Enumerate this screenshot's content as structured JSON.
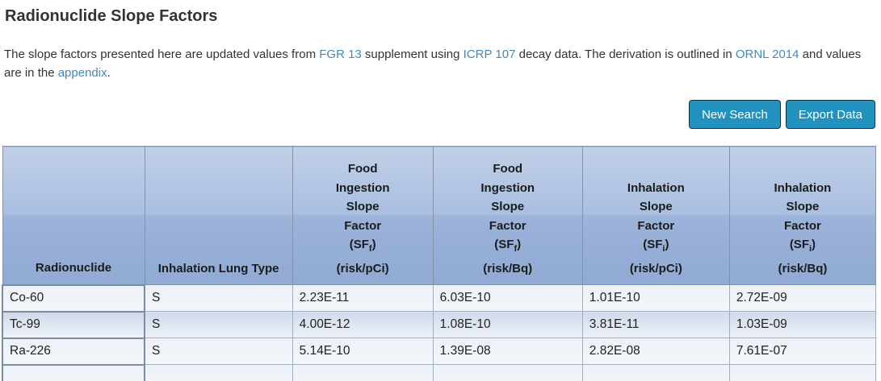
{
  "page": {
    "title": "Radionuclide Slope Factors"
  },
  "intro": {
    "part1": "The slope factors presented here are updated values from ",
    "link_fgr": "FGR 13",
    "part2": " supplement using ",
    "link_icrp": "ICRP 107",
    "part3": " decay data. The derivation is outlined in ",
    "link_ornl": "ORNL 2014",
    "part4": " and values are in the ",
    "link_appendix": "appendix",
    "part5": "."
  },
  "toolbar": {
    "new_search_label": "New Search",
    "export_data_label": "Export Data"
  },
  "table": {
    "columns": [
      {
        "id": "radionuclide",
        "type": "simple",
        "label": "Radionuclide"
      },
      {
        "id": "inhalation-lung-type",
        "type": "simple",
        "label": "Inhalation Lung Type"
      },
      {
        "id": "food-ingestion-risk-pci",
        "type": "factor",
        "lines": [
          "Food",
          "Ingestion",
          "Slope",
          "Factor"
        ],
        "symbol": "SF",
        "subscript": "f",
        "unit": "(risk/pCi)"
      },
      {
        "id": "food-ingestion-risk-bq",
        "type": "factor",
        "lines": [
          "Food",
          "Ingestion",
          "Slope",
          "Factor"
        ],
        "symbol": "SF",
        "subscript": "f",
        "unit": "(risk/Bq)"
      },
      {
        "id": "inhalation-risk-pci",
        "type": "factor",
        "lines": [
          "Inhalation",
          "Slope",
          "Factor"
        ],
        "symbol": "SF",
        "subscript": "i",
        "unit": "(risk/pCi)"
      },
      {
        "id": "inhalation-risk-bq",
        "type": "factor",
        "lines": [
          "Inhalation",
          "Slope",
          "Factor"
        ],
        "symbol": "SF",
        "subscript": "i",
        "unit": "(risk/Bq)"
      }
    ],
    "rows": [
      {
        "radionuclide": "Co-60",
        "inhalation_lung_type": "S",
        "food_ingestion_risk_pci": "2.23E-11",
        "food_ingestion_risk_bq": "6.03E-10",
        "inhalation_risk_pci": "1.01E-10",
        "inhalation_risk_bq": "2.72E-09"
      },
      {
        "radionuclide": "Tc-99",
        "inhalation_lung_type": "S",
        "food_ingestion_risk_pci": "4.00E-12",
        "food_ingestion_risk_bq": "1.08E-10",
        "inhalation_risk_pci": "3.81E-11",
        "inhalation_risk_bq": "1.03E-09"
      },
      {
        "radionuclide": "Ra-226",
        "inhalation_lung_type": "S",
        "food_ingestion_risk_pci": "5.14E-10",
        "food_ingestion_risk_bq": "1.39E-08",
        "inhalation_risk_pci": "2.82E-08",
        "inhalation_risk_bq": "7.61E-07"
      }
    ]
  },
  "colors": {
    "button_bg": "#2191bd",
    "link": "#4589bb",
    "header_gradient_top": "#c1d0e8",
    "header_gradient_bottom": "#90aad3"
  }
}
